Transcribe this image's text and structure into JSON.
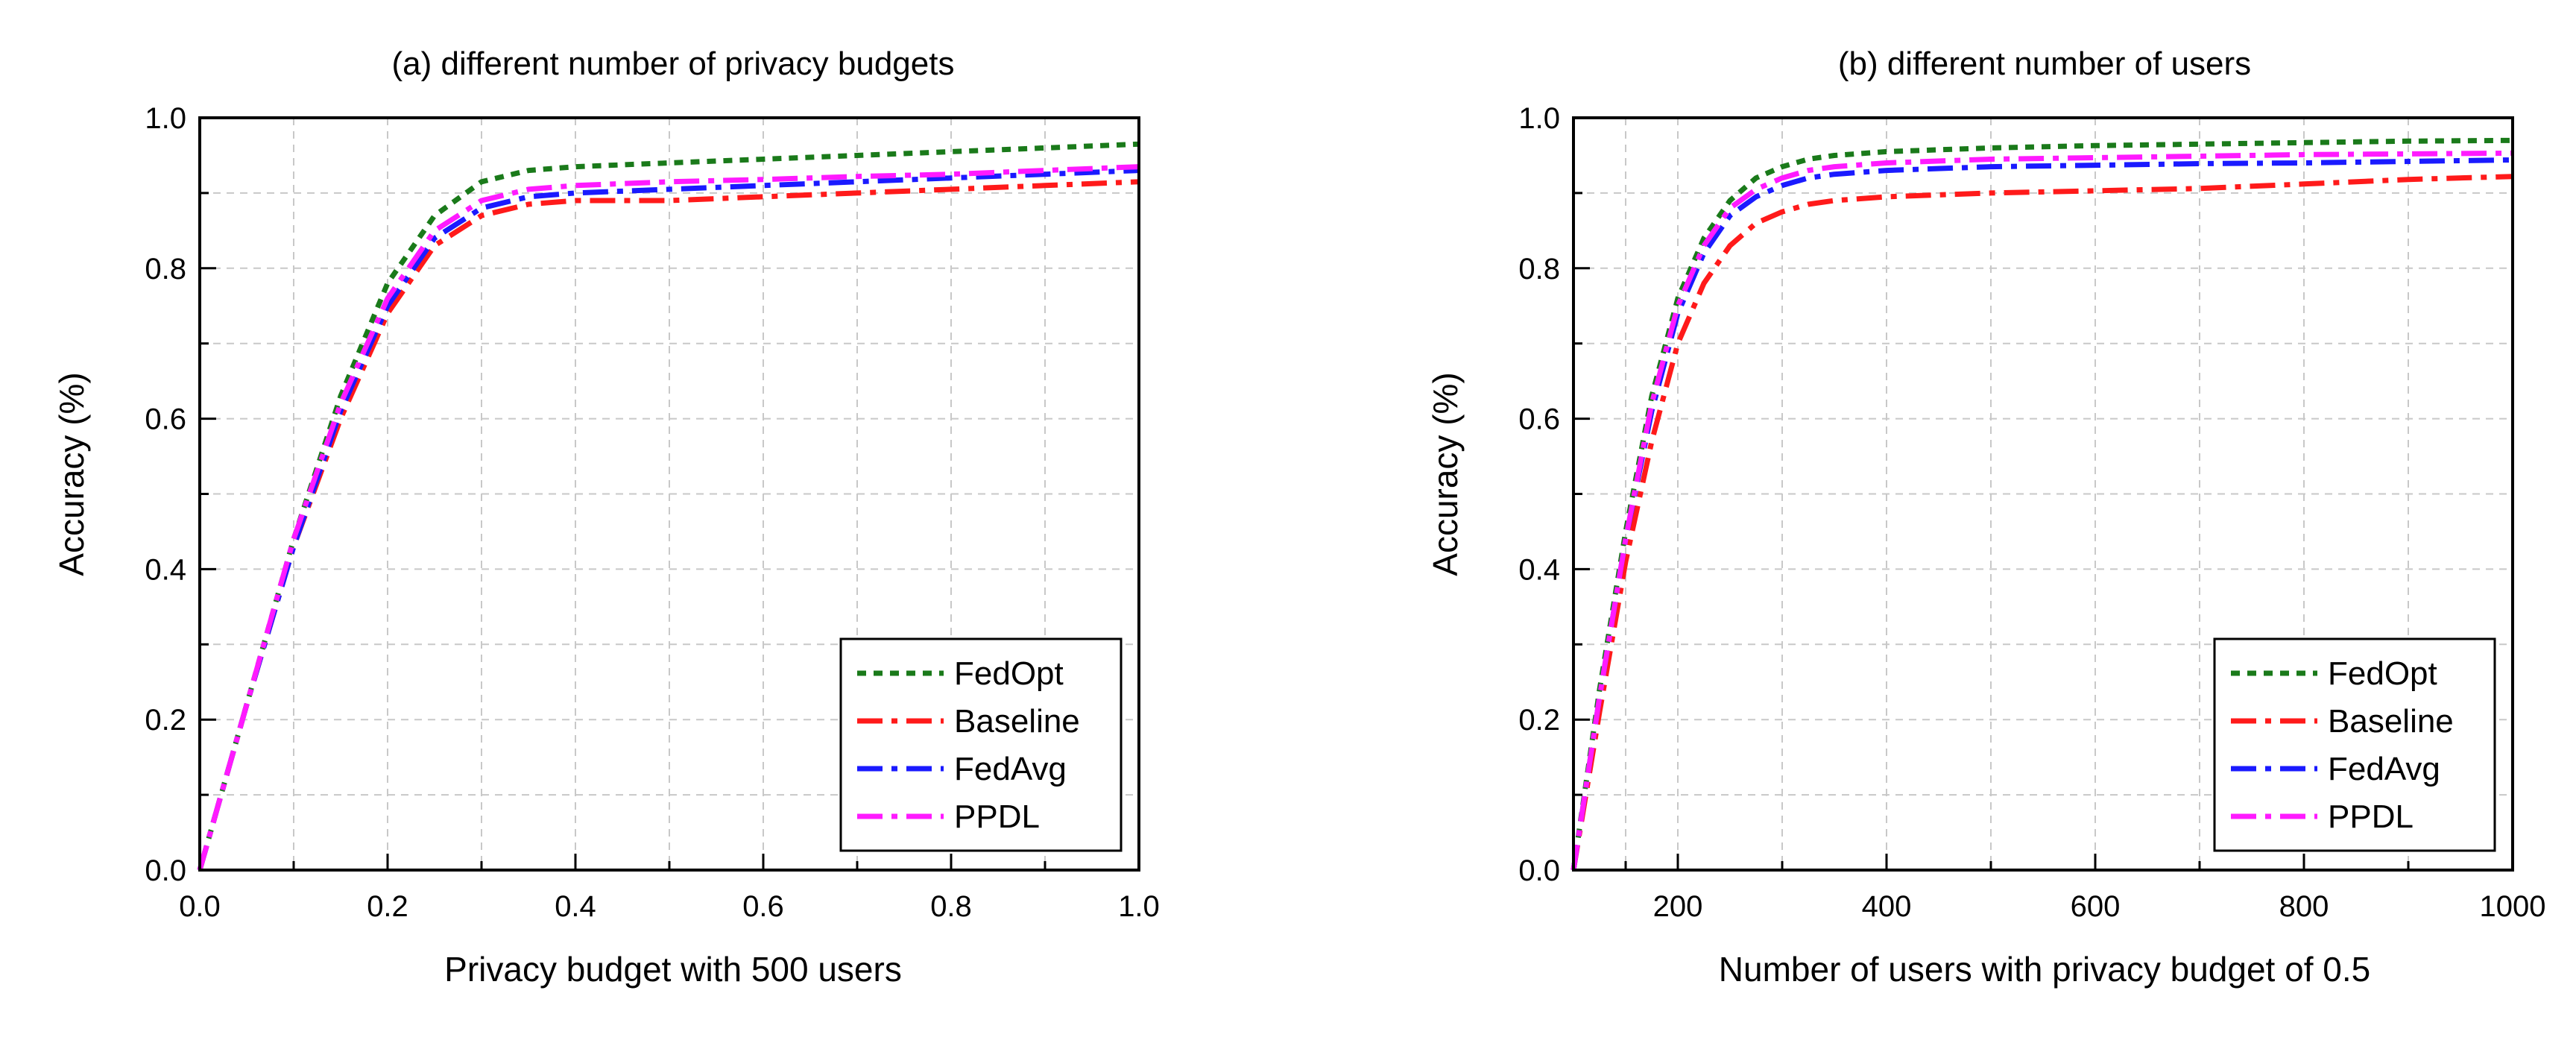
{
  "chart_data": [
    {
      "type": "line",
      "title": "(a) different number of privacy budgets",
      "xlabel": "Privacy budget with 500 users",
      "ylabel": "Accuracy (%)",
      "xlim": [
        0,
        1.0
      ],
      "ylim": [
        0,
        1.0
      ],
      "grid": true,
      "legend_position": "bottom-right",
      "x_ticks": [
        0.0,
        0.2,
        0.4,
        0.6,
        0.8,
        1.0
      ],
      "x_tick_labels": [
        "0.0",
        "0.2",
        "0.4",
        "0.6",
        "0.8",
        "1.0"
      ],
      "y_ticks": [
        0.0,
        0.2,
        0.4,
        0.6,
        0.8,
        1.0
      ],
      "y_tick_labels": [
        "0.0",
        "0.2",
        "0.4",
        "0.6",
        "0.8",
        "1.0"
      ],
      "series": [
        {
          "name": "FedOpt",
          "color": "#1a7a1a",
          "dash": "dot",
          "x": [
            0,
            0.05,
            0.1,
            0.15,
            0.2,
            0.25,
            0.3,
            0.35,
            0.4,
            0.5,
            0.6,
            0.7,
            0.8,
            0.9,
            1.0
          ],
          "y": [
            0,
            0.22,
            0.44,
            0.63,
            0.78,
            0.87,
            0.915,
            0.93,
            0.935,
            0.94,
            0.945,
            0.95,
            0.955,
            0.96,
            0.965
          ]
        },
        {
          "name": "Baseline",
          "color": "#ff1a1a",
          "dash": "dashdot",
          "x": [
            0,
            0.05,
            0.1,
            0.15,
            0.2,
            0.25,
            0.3,
            0.35,
            0.4,
            0.5,
            0.6,
            0.7,
            0.8,
            0.9,
            1.0
          ],
          "y": [
            0,
            0.22,
            0.43,
            0.6,
            0.74,
            0.83,
            0.87,
            0.885,
            0.89,
            0.89,
            0.895,
            0.9,
            0.905,
            0.91,
            0.915
          ]
        },
        {
          "name": "FedAvg",
          "color": "#1a1aff",
          "dash": "dashdot",
          "x": [
            0,
            0.05,
            0.1,
            0.15,
            0.2,
            0.25,
            0.3,
            0.35,
            0.4,
            0.5,
            0.6,
            0.7,
            0.8,
            0.9,
            1.0
          ],
          "y": [
            0,
            0.22,
            0.43,
            0.61,
            0.75,
            0.84,
            0.88,
            0.895,
            0.9,
            0.905,
            0.91,
            0.915,
            0.92,
            0.925,
            0.93
          ]
        },
        {
          "name": "PPDL",
          "color": "#ff1aff",
          "dash": "dashdot",
          "x": [
            0,
            0.05,
            0.1,
            0.15,
            0.2,
            0.25,
            0.3,
            0.35,
            0.4,
            0.5,
            0.6,
            0.7,
            0.8,
            0.9,
            1.0
          ],
          "y": [
            0,
            0.22,
            0.44,
            0.62,
            0.76,
            0.85,
            0.89,
            0.905,
            0.91,
            0.915,
            0.918,
            0.922,
            0.925,
            0.93,
            0.935
          ]
        }
      ]
    },
    {
      "type": "line",
      "title": "(b) different number of users",
      "xlabel": "Number of users with privacy budget of 0.5",
      "ylabel": "Accuracy (%)",
      "xlim": [
        100,
        1000
      ],
      "ylim": [
        0,
        1.0
      ],
      "grid": true,
      "legend_position": "bottom-right",
      "x_ticks": [
        200,
        400,
        600,
        800,
        1000
      ],
      "x_tick_labels": [
        "200",
        "400",
        "600",
        "800",
        "1000"
      ],
      "y_ticks": [
        0.0,
        0.2,
        0.4,
        0.6,
        0.8,
        1.0
      ],
      "y_tick_labels": [
        "0.0",
        "0.2",
        "0.4",
        "0.6",
        "0.8",
        "1.0"
      ],
      "series": [
        {
          "name": "FedOpt",
          "color": "#1a7a1a",
          "dash": "dot",
          "x": [
            100,
            125,
            150,
            175,
            200,
            225,
            250,
            275,
            300,
            325,
            350,
            400,
            500,
            600,
            700,
            800,
            900,
            1000
          ],
          "y": [
            0,
            0.24,
            0.45,
            0.63,
            0.76,
            0.84,
            0.89,
            0.92,
            0.935,
            0.945,
            0.95,
            0.955,
            0.96,
            0.963,
            0.965,
            0.967,
            0.969,
            0.97
          ]
        },
        {
          "name": "Baseline",
          "color": "#ff1a1a",
          "dash": "dashdot",
          "x": [
            100,
            125,
            150,
            175,
            200,
            225,
            250,
            275,
            300,
            325,
            350,
            400,
            500,
            600,
            700,
            800,
            900,
            1000
          ],
          "y": [
            0,
            0.21,
            0.41,
            0.57,
            0.7,
            0.78,
            0.83,
            0.86,
            0.875,
            0.885,
            0.89,
            0.895,
            0.9,
            0.903,
            0.906,
            0.912,
            0.918,
            0.922
          ]
        },
        {
          "name": "FedAvg",
          "color": "#1a1aff",
          "dash": "dashdot",
          "x": [
            100,
            125,
            150,
            175,
            200,
            225,
            250,
            275,
            300,
            325,
            350,
            400,
            500,
            600,
            700,
            800,
            900,
            1000
          ],
          "y": [
            0,
            0.23,
            0.44,
            0.61,
            0.74,
            0.82,
            0.87,
            0.895,
            0.91,
            0.92,
            0.925,
            0.93,
            0.935,
            0.937,
            0.939,
            0.94,
            0.942,
            0.944
          ]
        },
        {
          "name": "PPDL",
          "color": "#ff1aff",
          "dash": "dashdot",
          "x": [
            100,
            125,
            150,
            175,
            200,
            225,
            250,
            275,
            300,
            325,
            350,
            400,
            500,
            600,
            700,
            800,
            900,
            1000
          ],
          "y": [
            0,
            0.23,
            0.44,
            0.62,
            0.75,
            0.83,
            0.88,
            0.905,
            0.92,
            0.93,
            0.935,
            0.94,
            0.945,
            0.947,
            0.949,
            0.951,
            0.952,
            0.953
          ]
        }
      ]
    }
  ]
}
